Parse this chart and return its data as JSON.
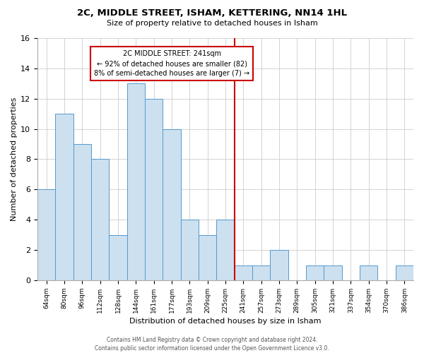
{
  "title": "2C, MIDDLE STREET, ISHAM, KETTERING, NN14 1HL",
  "subtitle": "Size of property relative to detached houses in Isham",
  "xlabel": "Distribution of detached houses by size in Isham",
  "ylabel": "Number of detached properties",
  "footer_line1": "Contains HM Land Registry data © Crown copyright and database right 2024.",
  "footer_line2": "Contains public sector information licensed under the Open Government Licence v3.0.",
  "bins": [
    "64sqm",
    "80sqm",
    "96sqm",
    "112sqm",
    "128sqm",
    "144sqm",
    "161sqm",
    "177sqm",
    "193sqm",
    "209sqm",
    "225sqm",
    "241sqm",
    "257sqm",
    "273sqm",
    "289sqm",
    "305sqm",
    "321sqm",
    "337sqm",
    "354sqm",
    "370sqm",
    "386sqm"
  ],
  "values": [
    6,
    11,
    9,
    8,
    3,
    13,
    12,
    10,
    4,
    3,
    4,
    1,
    1,
    2,
    0,
    1,
    1,
    0,
    1,
    0,
    1
  ],
  "property_line_idx": 11,
  "bar_color": "#cce0f0",
  "bar_edge_color": "#5599cc",
  "grid_color": "#cccccc",
  "background_color": "#ffffff",
  "annotation_title": "2C MIDDLE STREET: 241sqm",
  "annotation_line2": "← 92% of detached houses are smaller (82)",
  "annotation_line3": "8% of semi-detached houses are larger (7) →",
  "annotation_box_color": "#cc0000",
  "vline_color": "#cc0000",
  "ylim": [
    0,
    16
  ],
  "yticks": [
    0,
    2,
    4,
    6,
    8,
    10,
    12,
    14,
    16
  ]
}
